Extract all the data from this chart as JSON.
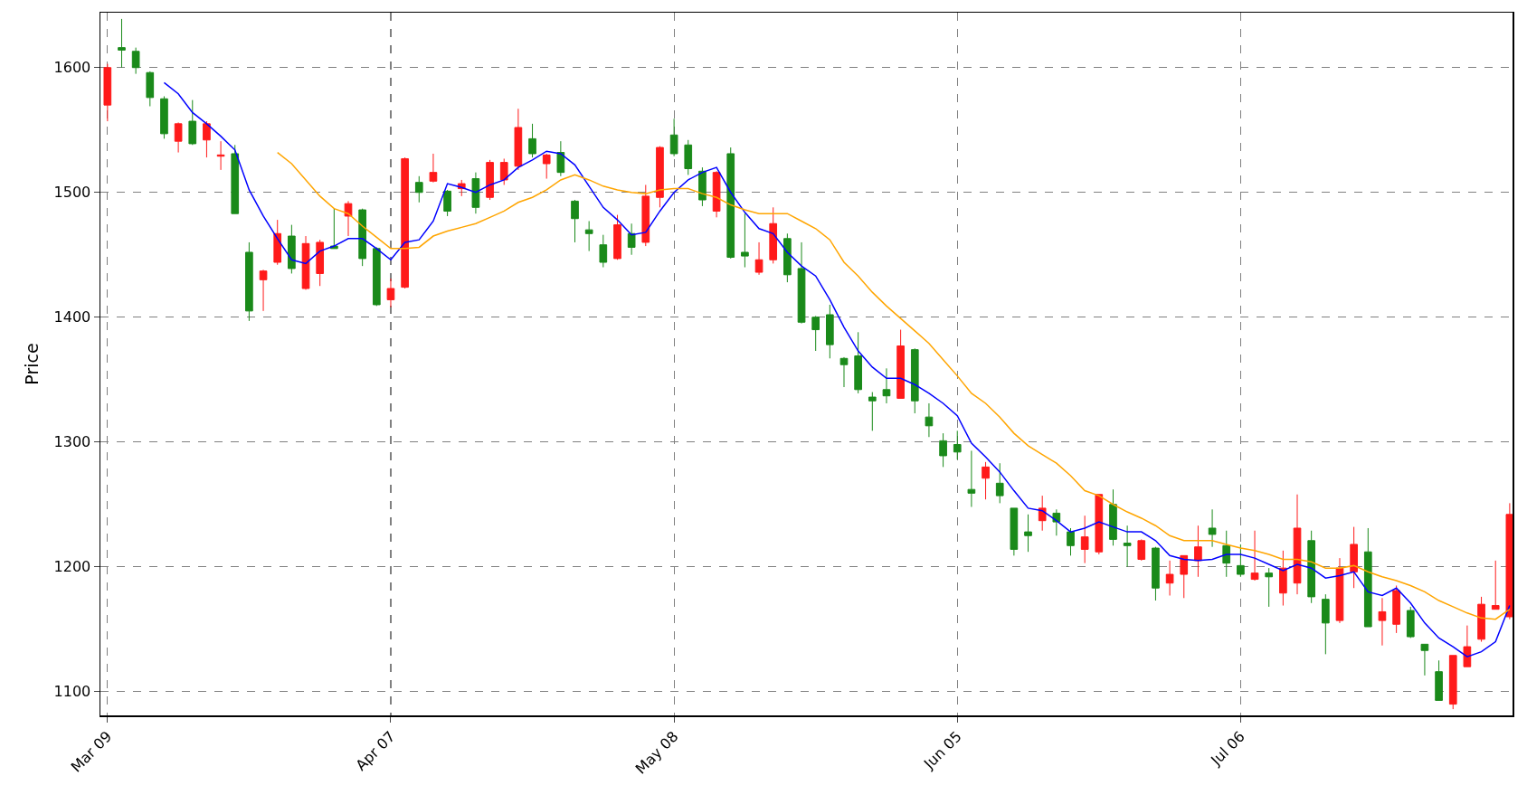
{
  "chart_data": {
    "type": "candlestick",
    "ylabel": "Price",
    "categories": [
      "Mar 09",
      null,
      null,
      null,
      null,
      null,
      null,
      null,
      null,
      null,
      null,
      null,
      null,
      null,
      null,
      null,
      null,
      null,
      null,
      null,
      "Apr 07",
      null,
      null,
      null,
      null,
      null,
      null,
      null,
      null,
      null,
      null,
      null,
      null,
      null,
      null,
      null,
      null,
      null,
      null,
      null,
      "May 08",
      null,
      null,
      null,
      null,
      null,
      null,
      null,
      null,
      null,
      null,
      null,
      null,
      null,
      null,
      null,
      null,
      null,
      null,
      null,
      "Jun 05",
      null,
      null,
      null,
      null,
      null,
      null,
      null,
      null,
      null,
      null,
      null,
      null,
      null,
      null,
      null,
      null,
      null,
      null,
      null,
      "Jul 06",
      null,
      null,
      null,
      null,
      null,
      null,
      null,
      null,
      null,
      null,
      null,
      null,
      null,
      null,
      null,
      null,
      null,
      null,
      null
    ],
    "ohlc": [
      [
        1570,
        1603,
        1557,
        1600
      ],
      [
        1616,
        1639,
        1600,
        1614
      ],
      [
        1613,
        1616,
        1595,
        1600
      ],
      [
        1596,
        1597,
        1569,
        1576
      ],
      [
        1575,
        1577,
        1543,
        1547
      ],
      [
        1541,
        1556,
        1532,
        1555
      ],
      [
        1557,
        1574,
        1538,
        1539
      ],
      [
        1542,
        1557,
        1528,
        1555
      ],
      [
        1529,
        1541,
        1518,
        1530
      ],
      [
        1531,
        1538,
        1483,
        1483
      ],
      [
        1452,
        1460,
        1397,
        1405
      ],
      [
        1430,
        1438,
        1405,
        1437
      ],
      [
        1444,
        1478,
        1442,
        1467
      ],
      [
        1465,
        1474,
        1435,
        1439
      ],
      [
        1423,
        1465,
        1422,
        1459
      ],
      [
        1435,
        1462,
        1425,
        1460
      ],
      [
        1457,
        1487,
        1455,
        1455
      ],
      [
        1481,
        1493,
        1465,
        1491
      ],
      [
        1486,
        1487,
        1441,
        1447
      ],
      [
        1455,
        1456,
        1409,
        1410
      ],
      [
        1414,
        1431,
        1408,
        1423
      ],
      [
        1424,
        1528,
        1423,
        1527
      ],
      [
        1508,
        1513,
        1492,
        1500
      ],
      [
        1509,
        1531,
        1508,
        1516
      ],
      [
        1501,
        1502,
        1481,
        1485
      ],
      [
        1503,
        1510,
        1497,
        1507
      ],
      [
        1511,
        1516,
        1483,
        1488
      ],
      [
        1496,
        1526,
        1494,
        1524
      ],
      [
        1510,
        1527,
        1506,
        1524
      ],
      [
        1521,
        1567,
        1518,
        1552
      ],
      [
        1543,
        1555,
        1528,
        1531
      ],
      [
        1523,
        1531,
        1511,
        1530
      ],
      [
        1532,
        1541,
        1513,
        1516
      ],
      [
        1493,
        1494,
        1460,
        1479
      ],
      [
        1470,
        1477,
        1453,
        1467
      ],
      [
        1458,
        1466,
        1440,
        1444
      ],
      [
        1447,
        1482,
        1446,
        1474
      ],
      [
        1467,
        1475,
        1450,
        1456
      ],
      [
        1460,
        1506,
        1457,
        1497
      ],
      [
        1496,
        1537,
        1488,
        1536
      ],
      [
        1546,
        1559,
        1529,
        1531
      ],
      [
        1538,
        1542,
        1514,
        1519
      ],
      [
        1517,
        1520,
        1489,
        1494
      ],
      [
        1485,
        1517,
        1480,
        1516
      ],
      [
        1531,
        1536,
        1447,
        1448
      ],
      [
        1452,
        1483,
        1440,
        1449
      ],
      [
        1436,
        1460,
        1434,
        1446
      ],
      [
        1446,
        1488,
        1443,
        1475
      ],
      [
        1463,
        1467,
        1428,
        1434
      ],
      [
        1439,
        1460,
        1395,
        1396
      ],
      [
        1400,
        1401,
        1373,
        1390
      ],
      [
        1402,
        1410,
        1367,
        1378
      ],
      [
        1367,
        1368,
        1344,
        1362
      ],
      [
        1369,
        1388,
        1339,
        1342
      ],
      [
        1336,
        1340,
        1309,
        1333
      ],
      [
        1342,
        1359,
        1331,
        1337
      ],
      [
        1335,
        1390,
        1335,
        1377
      ],
      [
        1374,
        1375,
        1323,
        1333
      ],
      [
        1320,
        1331,
        1304,
        1313
      ],
      [
        1301,
        1307,
        1280,
        1289
      ],
      [
        1298,
        1309,
        1286,
        1292
      ],
      [
        1262,
        1293,
        1248,
        1259
      ],
      [
        1271,
        1284,
        1254,
        1280
      ],
      [
        1267,
        1283,
        1251,
        1257
      ],
      [
        1247,
        1247,
        1209,
        1214
      ],
      [
        1228,
        1242,
        1212,
        1225
      ],
      [
        1237,
        1257,
        1229,
        1247
      ],
      [
        1243,
        1246,
        1225,
        1236
      ],
      [
        1228,
        1231,
        1209,
        1217
      ],
      [
        1214,
        1241,
        1203,
        1224
      ],
      [
        1212,
        1258,
        1210,
        1258
      ],
      [
        1250,
        1262,
        1217,
        1222
      ],
      [
        1219,
        1233,
        1200,
        1217
      ],
      [
        1206,
        1222,
        1205,
        1221
      ],
      [
        1215,
        1216,
        1173,
        1183
      ],
      [
        1187,
        1205,
        1177,
        1194
      ],
      [
        1194,
        1209,
        1175,
        1209
      ],
      [
        1205,
        1233,
        1192,
        1216
      ],
      [
        1231,
        1246,
        1216,
        1226
      ],
      [
        1217,
        1229,
        1192,
        1203
      ],
      [
        1201,
        1218,
        1192,
        1194
      ],
      [
        1190,
        1229,
        1189,
        1195
      ],
      [
        1195,
        1199,
        1168,
        1192
      ],
      [
        1179,
        1213,
        1169,
        1199
      ],
      [
        1187,
        1258,
        1178,
        1231
      ],
      [
        1221,
        1229,
        1171,
        1176
      ],
      [
        1174,
        1178,
        1130,
        1155
      ],
      [
        1157,
        1207,
        1155,
        1199
      ],
      [
        1196,
        1232,
        1183,
        1218
      ],
      [
        1212,
        1231,
        1152,
        1152
      ],
      [
        1157,
        1175,
        1137,
        1164
      ],
      [
        1154,
        1185,
        1147,
        1181
      ],
      [
        1165,
        1168,
        1143,
        1144
      ],
      [
        1138,
        1138,
        1113,
        1133
      ],
      [
        1116,
        1125,
        1093,
        1093
      ],
      [
        1090,
        1129,
        1086,
        1129
      ],
      [
        1120,
        1153,
        1120,
        1136
      ],
      [
        1142,
        1176,
        1140,
        1170
      ],
      [
        1166,
        1205,
        1166,
        1169
      ],
      [
        1160,
        1251,
        1158,
        1242
      ]
    ],
    "colors": [
      "#ff1a1a",
      "#1a8a1a",
      "#1a8a1a",
      "#1a8a1a",
      "#1a8a1a",
      "#ff1a1a",
      "#1a8a1a",
      "#ff1a1a",
      "#ff1a1a",
      "#1a8a1a",
      "#1a8a1a",
      "#ff1a1a",
      "#ff1a1a",
      "#1a8a1a",
      "#ff1a1a",
      "#ff1a1a",
      "#1a8a1a",
      "#ff1a1a",
      "#1a8a1a",
      "#1a8a1a",
      "#ff1a1a",
      "#ff1a1a",
      "#1a8a1a",
      "#ff1a1a",
      "#1a8a1a",
      "#ff1a1a",
      "#1a8a1a",
      "#ff1a1a",
      "#ff1a1a",
      "#ff1a1a",
      "#1a8a1a",
      "#ff1a1a",
      "#1a8a1a",
      "#1a8a1a",
      "#1a8a1a",
      "#1a8a1a",
      "#ff1a1a",
      "#1a8a1a",
      "#ff1a1a",
      "#ff1a1a",
      "#1a8a1a",
      "#1a8a1a",
      "#1a8a1a",
      "#ff1a1a",
      "#1a8a1a",
      "#1a8a1a",
      "#ff1a1a",
      "#ff1a1a",
      "#1a8a1a",
      "#1a8a1a",
      "#1a8a1a",
      "#1a8a1a",
      "#1a8a1a",
      "#1a8a1a",
      "#1a8a1a",
      "#1a8a1a",
      "#ff1a1a",
      "#1a8a1a",
      "#1a8a1a",
      "#1a8a1a",
      "#1a8a1a",
      "#1a8a1a",
      "#ff1a1a",
      "#1a8a1a",
      "#1a8a1a",
      "#1a8a1a",
      "#ff1a1a",
      "#1a8a1a",
      "#1a8a1a",
      "#ff1a1a",
      "#ff1a1a",
      "#1a8a1a",
      "#1a8a1a",
      "#ff1a1a",
      "#1a8a1a",
      "#ff1a1a",
      "#ff1a1a",
      "#ff1a1a",
      "#1a8a1a",
      "#1a8a1a",
      "#1a8a1a",
      "#ff1a1a",
      "#1a8a1a",
      "#ff1a1a",
      "#ff1a1a",
      "#1a8a1a",
      "#1a8a1a",
      "#ff1a1a",
      "#ff1a1a",
      "#1a8a1a",
      "#ff1a1a",
      "#ff1a1a",
      "#1a8a1a",
      "#1a8a1a",
      "#1a8a1a",
      "#ff1a1a",
      "#ff1a1a",
      "#ff1a1a",
      "#ff1a1a",
      "#ff1a1a"
    ],
    "series": [
      {
        "type": "line",
        "color": "#0000ff",
        "values": [
          null,
          null,
          null,
          null,
          1588,
          1579,
          1564,
          1555,
          1545,
          1534,
          1502,
          1481,
          1463,
          1446,
          1443,
          1453,
          1457,
          1463,
          1463,
          1455,
          1446,
          1460,
          1462,
          1477,
          1507,
          1504,
          1500,
          1506,
          1510,
          1520,
          1526,
          1533,
          1531,
          1522,
          1505,
          1488,
          1478,
          1466,
          1468,
          1485,
          1500,
          1510,
          1516,
          1520,
          1500,
          1484,
          1471,
          1467,
          1452,
          1441,
          1433,
          1414,
          1392,
          1373,
          1360,
          1351,
          1351,
          1346,
          1339,
          1331,
          1321,
          1299,
          1288,
          1276,
          1261,
          1247,
          1245,
          1237,
          1228,
          1231,
          1236,
          1232,
          1228,
          1228,
          1221,
          1209,
          1206,
          1205,
          1206,
          1210,
          1210,
          1207,
          1202,
          1197,
          1202,
          1199,
          1191,
          1193,
          1196,
          1180,
          1177,
          1183,
          1171,
          1155,
          1143,
          1136,
          1128,
          1132,
          1140,
          1169
        ]
      },
      {
        "type": "line",
        "color": "#ffa500",
        "values": [
          null,
          null,
          null,
          null,
          null,
          null,
          null,
          null,
          null,
          null,
          null,
          null,
          1532,
          1523,
          1510,
          1497,
          1487,
          1483,
          1473,
          1464,
          1455,
          1455,
          1456,
          1465,
          1469,
          1472,
          1475,
          1480,
          1485,
          1492,
          1496,
          1502,
          1510,
          1514,
          1510,
          1505,
          1502,
          1500,
          1499,
          1502,
          1503,
          1503,
          1499,
          1496,
          1490,
          1486,
          1483,
          1483,
          1483,
          1477,
          1471,
          1462,
          1444,
          1433,
          1420,
          1409,
          1399,
          1389,
          1379,
          1366,
          1353,
          1339,
          1331,
          1320,
          1307,
          1297,
          1290,
          1283,
          1273,
          1261,
          1257,
          1250,
          1244,
          1239,
          1233,
          1225,
          1221,
          1221,
          1221,
          1218,
          1215,
          1213,
          1210,
          1206,
          1206,
          1204,
          1199,
          1199,
          1201,
          1196,
          1192,
          1189,
          1185,
          1180,
          1173,
          1168,
          1163,
          1159,
          1158,
          1166
        ]
      }
    ],
    "ylim": [
      1081,
      1644
    ],
    "yticks": [
      1100,
      1200,
      1300,
      1400,
      1500,
      1600
    ],
    "grid": true
  }
}
